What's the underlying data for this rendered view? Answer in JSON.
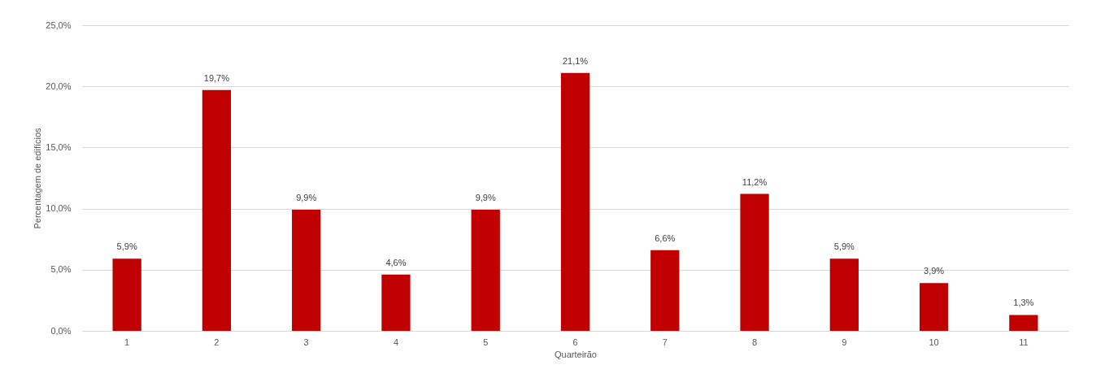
{
  "chart_data": {
    "type": "bar",
    "xlabel": "Quarteirão",
    "ylabel": "Percentagem de edifícios",
    "categories": [
      "1",
      "2",
      "3",
      "4",
      "5",
      "6",
      "7",
      "8",
      "9",
      "10",
      "11"
    ],
    "values": [
      5.9,
      19.7,
      9.9,
      4.6,
      9.9,
      21.1,
      6.6,
      11.2,
      5.9,
      3.9,
      1.3
    ],
    "value_labels": [
      "5,9%",
      "19,7%",
      "9,9%",
      "4,6%",
      "9,9%",
      "21,1%",
      "6,6%",
      "11,2%",
      "5,9%",
      "3,9%",
      "1,3%"
    ],
    "color": "#c00000",
    "ylim": [
      0,
      25
    ],
    "yticks": [
      {
        "value": 0,
        "label": "0,0%"
      },
      {
        "value": 5,
        "label": "5,0%"
      },
      {
        "value": 10,
        "label": "10,0%"
      },
      {
        "value": 15,
        "label": "15,0%"
      },
      {
        "value": 20,
        "label": "20,0%"
      },
      {
        "value": 25,
        "label": "25,0%"
      }
    ],
    "grid": "y"
  }
}
